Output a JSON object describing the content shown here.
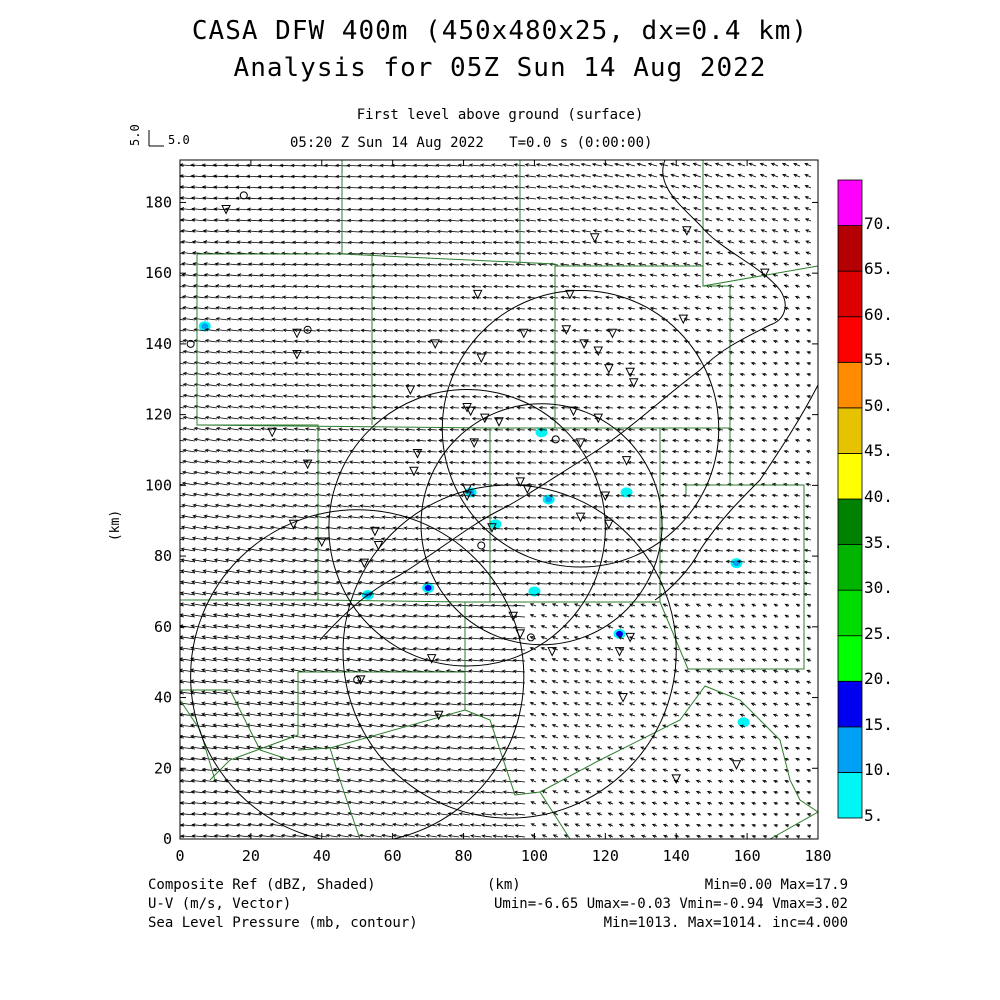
{
  "title": {
    "line1": "CASA DFW 400m (450x480x25, dx=0.4 km)",
    "line2": "Analysis for 05Z Sun 14 Aug 2022"
  },
  "subtitle": "First level above ground (surface)",
  "time_line": "05:20 Z Sun 14 Aug 2022   T=0.0 s (0:00:00)",
  "ref_vector": {
    "label": "5.0",
    "label_rotated": "5.0"
  },
  "axes": {
    "xlabel": "(km)",
    "ylabel": "(km)",
    "x_ticks": [
      "0",
      "20",
      "40",
      "60",
      "80",
      "100",
      "120",
      "140",
      "160",
      "180"
    ],
    "y_ticks": [
      "0",
      "20",
      "40",
      "60",
      "80",
      "100",
      "120",
      "140",
      "160",
      "180"
    ],
    "xlim": [
      0,
      180
    ],
    "ylim": [
      0,
      192
    ]
  },
  "colorbar": {
    "labels": [
      "5.",
      "10.",
      "15.",
      "20.",
      "25.",
      "30.",
      "35.",
      "40.",
      "45.",
      "50.",
      "55.",
      "60.",
      "65.",
      "70."
    ],
    "colors": [
      "#00f5f5",
      "#00a0f5",
      "#0000f0",
      "#00ff00",
      "#00dc00",
      "#00b400",
      "#008200",
      "#ffff00",
      "#e6c300",
      "#ff8c00",
      "#ff0000",
      "#dc0000",
      "#b40000",
      "#ff00ff"
    ]
  },
  "footer": {
    "left1": "Composite Ref (dBZ, Shaded)",
    "right1": "Min=0.00 Max=17.9",
    "left2": "U-V (m/s, Vector)",
    "right2": "Umin=-6.65 Umax=-0.03 Vmin=-0.94 Vmax=3.02",
    "left3": "Sea Level Pressure (mb, contour)",
    "right3": "Min=1013. Max=1014. inc=4.000"
  },
  "map_data": {
    "radar_rings_km": [
      {
        "cx": 113,
        "cy": 116,
        "r": 39
      },
      {
        "cx": 81,
        "cy": 88,
        "r": 39
      },
      {
        "cx": 102,
        "cy": 89,
        "r": 34
      },
      {
        "cx": 93,
        "cy": 53,
        "r": 47
      },
      {
        "cx": 50,
        "cy": 46,
        "r": 47
      }
    ],
    "reflectivity_blobs_km": [
      {
        "x": 7,
        "y": 145,
        "dbz": 12
      },
      {
        "x": 102,
        "y": 115,
        "dbz": 8
      },
      {
        "x": 126,
        "y": 98,
        "dbz": 8
      },
      {
        "x": 82,
        "y": 98,
        "dbz": 12
      },
      {
        "x": 104,
        "y": 96,
        "dbz": 10
      },
      {
        "x": 89,
        "y": 89,
        "dbz": 8
      },
      {
        "x": 157,
        "y": 78,
        "dbz": 12
      },
      {
        "x": 70,
        "y": 71,
        "dbz": 15
      },
      {
        "x": 53,
        "y": 69,
        "dbz": 10
      },
      {
        "x": 100,
        "y": 70,
        "dbz": 8
      },
      {
        "x": 124,
        "y": 58,
        "dbz": 15
      },
      {
        "x": 159,
        "y": 33,
        "dbz": 8
      }
    ],
    "station_triangles_km": [
      [
        13,
        178
      ],
      [
        117,
        170
      ],
      [
        143,
        172
      ],
      [
        84,
        154
      ],
      [
        110,
        154
      ],
      [
        142,
        147
      ],
      [
        33,
        143
      ],
      [
        97,
        143
      ],
      [
        109,
        144
      ],
      [
        122,
        143
      ],
      [
        33,
        137
      ],
      [
        72,
        140
      ],
      [
        85,
        136
      ],
      [
        114,
        140
      ],
      [
        118,
        138
      ],
      [
        121,
        133
      ],
      [
        127,
        132
      ],
      [
        128,
        129
      ],
      [
        65,
        127
      ],
      [
        81,
        122
      ],
      [
        82,
        121
      ],
      [
        86,
        119
      ],
      [
        90,
        118
      ],
      [
        111,
        121
      ],
      [
        118,
        119
      ],
      [
        26,
        115
      ],
      [
        83,
        112
      ],
      [
        113,
        112
      ],
      [
        67,
        109
      ],
      [
        126,
        107
      ],
      [
        36,
        106
      ],
      [
        66,
        104
      ],
      [
        81,
        99
      ],
      [
        96,
        101
      ],
      [
        98,
        99
      ],
      [
        120,
        97
      ],
      [
        113,
        91
      ],
      [
        81,
        97
      ],
      [
        32,
        89
      ],
      [
        88,
        88
      ],
      [
        55,
        87
      ],
      [
        121,
        89
      ],
      [
        40,
        84
      ],
      [
        56,
        83
      ],
      [
        52,
        78
      ],
      [
        94,
        63
      ],
      [
        96,
        58
      ],
      [
        127,
        57
      ],
      [
        105,
        53
      ],
      [
        124,
        53
      ],
      [
        71,
        51
      ],
      [
        51,
        45
      ],
      [
        125,
        40
      ],
      [
        73,
        35
      ],
      [
        157,
        21
      ],
      [
        140,
        17
      ],
      [
        165,
        160
      ]
    ],
    "station_circles_km": [
      [
        18,
        182
      ],
      [
        36,
        144
      ],
      [
        106,
        113
      ],
      [
        85,
        83
      ],
      [
        99,
        57
      ],
      [
        50,
        45
      ],
      [
        3,
        140
      ]
    ]
  }
}
